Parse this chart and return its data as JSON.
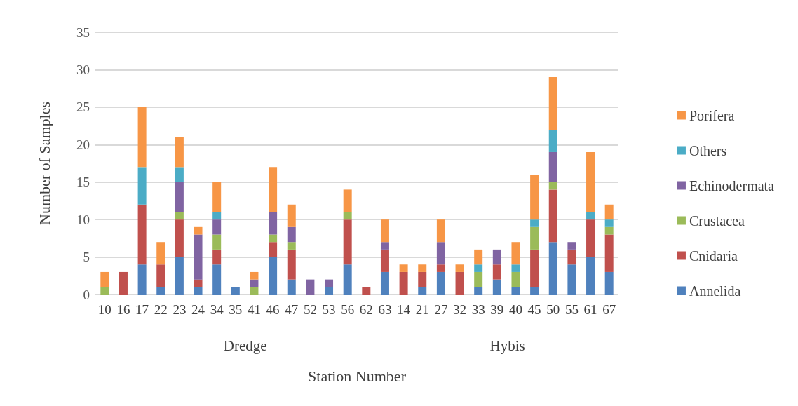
{
  "chart_data": {
    "type": "bar",
    "stacked": true,
    "xlabel": "Station Number",
    "ylabel": "Number of Samples",
    "categories": [
      "10",
      "16",
      "17",
      "22",
      "23",
      "24",
      "34",
      "35",
      "41",
      "46",
      "47",
      "52",
      "53",
      "56",
      "62",
      "63",
      "14",
      "21",
      "27",
      "32",
      "33",
      "39",
      "40",
      "45",
      "50",
      "55",
      "61",
      "67"
    ],
    "series": [
      {
        "name": "Annelida",
        "color": "#4f81bd",
        "values": [
          0,
          0,
          4,
          1,
          5,
          1,
          4,
          1,
          0,
          5,
          2,
          0,
          1,
          4,
          0,
          3,
          0,
          1,
          3,
          0,
          1,
          2,
          1,
          1,
          7,
          4,
          5,
          3
        ]
      },
      {
        "name": "Cnidaria",
        "color": "#c0504d",
        "values": [
          0,
          3,
          8,
          3,
          5,
          1,
          2,
          0,
          0,
          2,
          4,
          0,
          0,
          6,
          1,
          3,
          3,
          2,
          1,
          3,
          0,
          2,
          0,
          5,
          7,
          2,
          5,
          5
        ]
      },
      {
        "name": "Crustacea",
        "color": "#9bbb59",
        "values": [
          1,
          0,
          0,
          0,
          1,
          0,
          2,
          0,
          1,
          1,
          1,
          0,
          0,
          1,
          0,
          0,
          0,
          0,
          0,
          0,
          2,
          0,
          2,
          3,
          1,
          0,
          0,
          1
        ]
      },
      {
        "name": "Echinodermata",
        "color": "#8064a2",
        "values": [
          0,
          0,
          0,
          0,
          4,
          6,
          2,
          0,
          1,
          3,
          2,
          2,
          1,
          0,
          0,
          1,
          0,
          0,
          3,
          0,
          0,
          2,
          0,
          0,
          4,
          1,
          0,
          0
        ]
      },
      {
        "name": "Others",
        "color": "#4bacc6",
        "values": [
          0,
          0,
          5,
          0,
          2,
          0,
          1,
          0,
          0,
          0,
          0,
          0,
          0,
          0,
          0,
          0,
          0,
          0,
          0,
          0,
          1,
          0,
          1,
          1,
          3,
          0,
          1,
          1
        ]
      },
      {
        "name": "Porifera",
        "color": "#f79646",
        "values": [
          2,
          0,
          8,
          3,
          4,
          1,
          4,
          0,
          1,
          6,
          3,
          0,
          0,
          3,
          0,
          3,
          1,
          1,
          3,
          1,
          2,
          0,
          3,
          6,
          7,
          0,
          8,
          2
        ]
      }
    ],
    "ylim": [
      0,
      35
    ],
    "yticks": [
      0,
      5,
      10,
      15,
      20,
      25,
      30,
      35
    ],
    "grid": "y",
    "legend": "right",
    "annotations": [
      "Dredge",
      "Hybis"
    ]
  }
}
